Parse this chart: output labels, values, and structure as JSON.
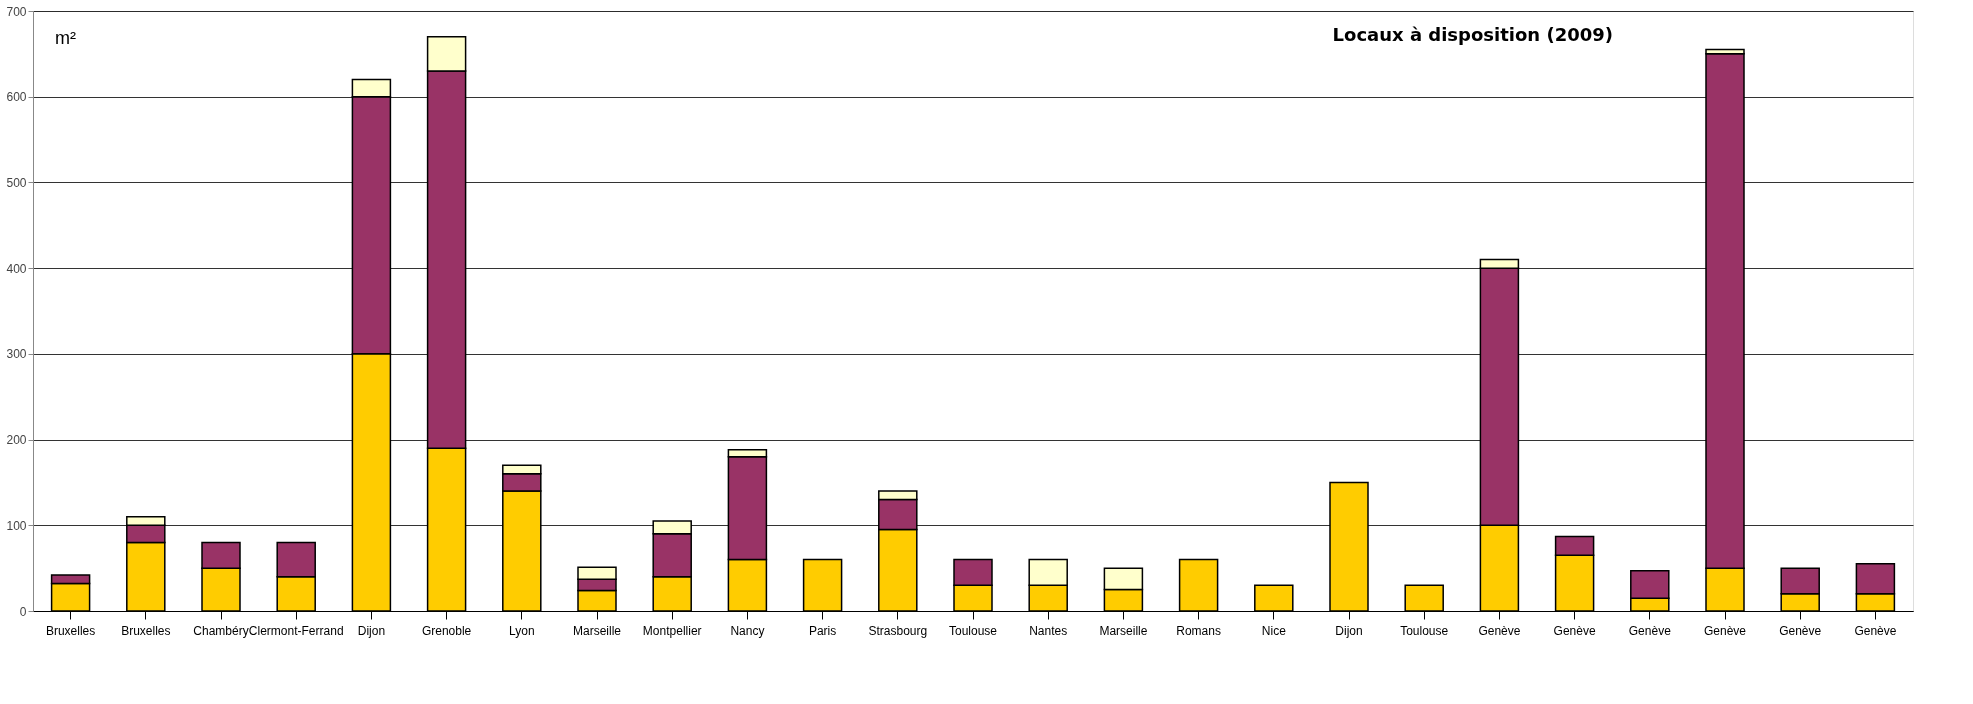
{
  "chart_data": {
    "type": "bar",
    "title": "Locaux à disposition (2009)",
    "ylabel": "m²",
    "stacked": true,
    "categories": [
      "Bruxelles",
      "Bruxelles",
      "Chambéry",
      "Clermont-Ferrand",
      "Dijon",
      "Grenoble",
      "Lyon",
      "Marseille",
      "Montpellier",
      "Nancy",
      "Paris",
      "Strasbourg",
      "Toulouse",
      "Nantes",
      "Marseille",
      "Romans",
      "Nice",
      "Dijon",
      "Toulouse",
      "Genève",
      "Genève",
      "Genève",
      "Genève",
      "Genève",
      "Genève"
    ],
    "series": [
      {
        "color": "#ffcc00",
        "values": [
          32,
          80,
          50,
          40,
          300,
          190,
          140,
          24,
          40,
          60,
          60,
          95,
          30,
          30,
          25,
          60,
          30,
          150,
          30,
          100,
          65,
          15,
          50,
          20,
          20
        ]
      },
      {
        "color": "#993366",
        "values": [
          10,
          20,
          30,
          40,
          300,
          440,
          20,
          13,
          50,
          120,
          0,
          35,
          30,
          0,
          0,
          0,
          0,
          0,
          0,
          300,
          22,
          32,
          600,
          30,
          35
        ]
      },
      {
        "color": "#ffffcc",
        "values": [
          0,
          10,
          0,
          0,
          20,
          40,
          10,
          14,
          15,
          8,
          0,
          10,
          0,
          30,
          25,
          0,
          0,
          0,
          0,
          10,
          0,
          0,
          5,
          0,
          0
        ]
      }
    ],
    "ylim": [
      0,
      700
    ],
    "yticks": [
      0,
      100,
      200,
      300,
      400,
      500,
      600,
      700
    ],
    "grid": "y"
  }
}
